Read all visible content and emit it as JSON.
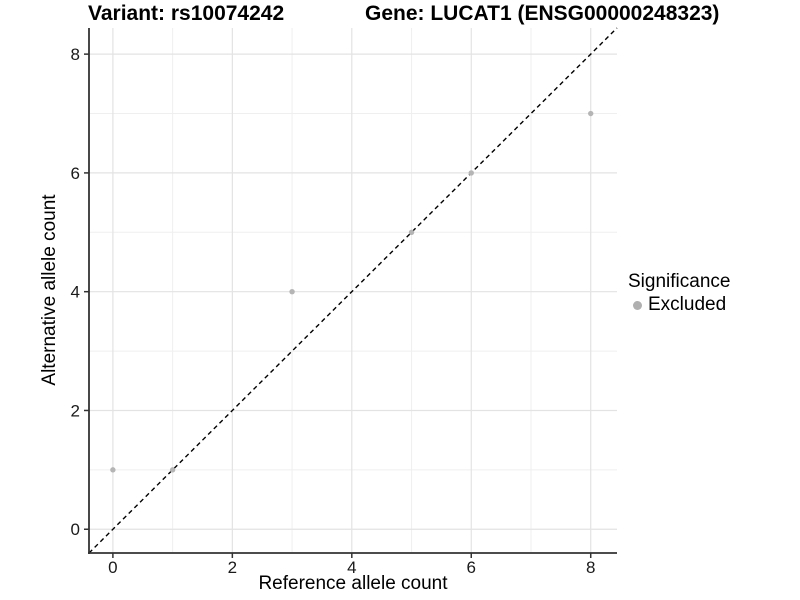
{
  "chart_data": {
    "type": "scatter",
    "title_left": "Variant: rs10074242",
    "title_right": "Gene: LUCAT1 (ENSG00000248323)",
    "xlabel": "Reference allele count",
    "ylabel": "Alternative allele count",
    "xlim": [
      -0.4,
      8.44
    ],
    "ylim": [
      -0.4,
      8.44
    ],
    "xticks": [
      0,
      2,
      4,
      6,
      8
    ],
    "yticks": [
      0,
      2,
      4,
      6,
      8
    ],
    "minor_xticks": [
      1,
      3,
      5,
      7
    ],
    "minor_yticks": [
      1,
      3,
      5,
      7
    ],
    "grid": true,
    "legend_position": "right",
    "identity_line": {
      "style": "dashed",
      "slope": 1,
      "intercept": 0,
      "color": "#000000"
    },
    "series": [
      {
        "name": "Excluded",
        "color": "#b5b5b5",
        "points": [
          [
            0,
            1
          ],
          [
            1,
            1
          ],
          [
            3,
            4
          ],
          [
            5,
            5
          ],
          [
            6,
            6
          ],
          [
            8,
            7
          ]
        ]
      }
    ],
    "legend": {
      "title": "Significance",
      "items": [
        {
          "label": "Excluded",
          "color": "#b0b0b0"
        }
      ]
    },
    "colors": {
      "major_grid": "#e3e3e3",
      "minor_grid": "#efefef",
      "axis_line": "#333333",
      "tick_mark": "#333333",
      "tick_text": "#1a1a1a",
      "background": "#ffffff"
    }
  }
}
